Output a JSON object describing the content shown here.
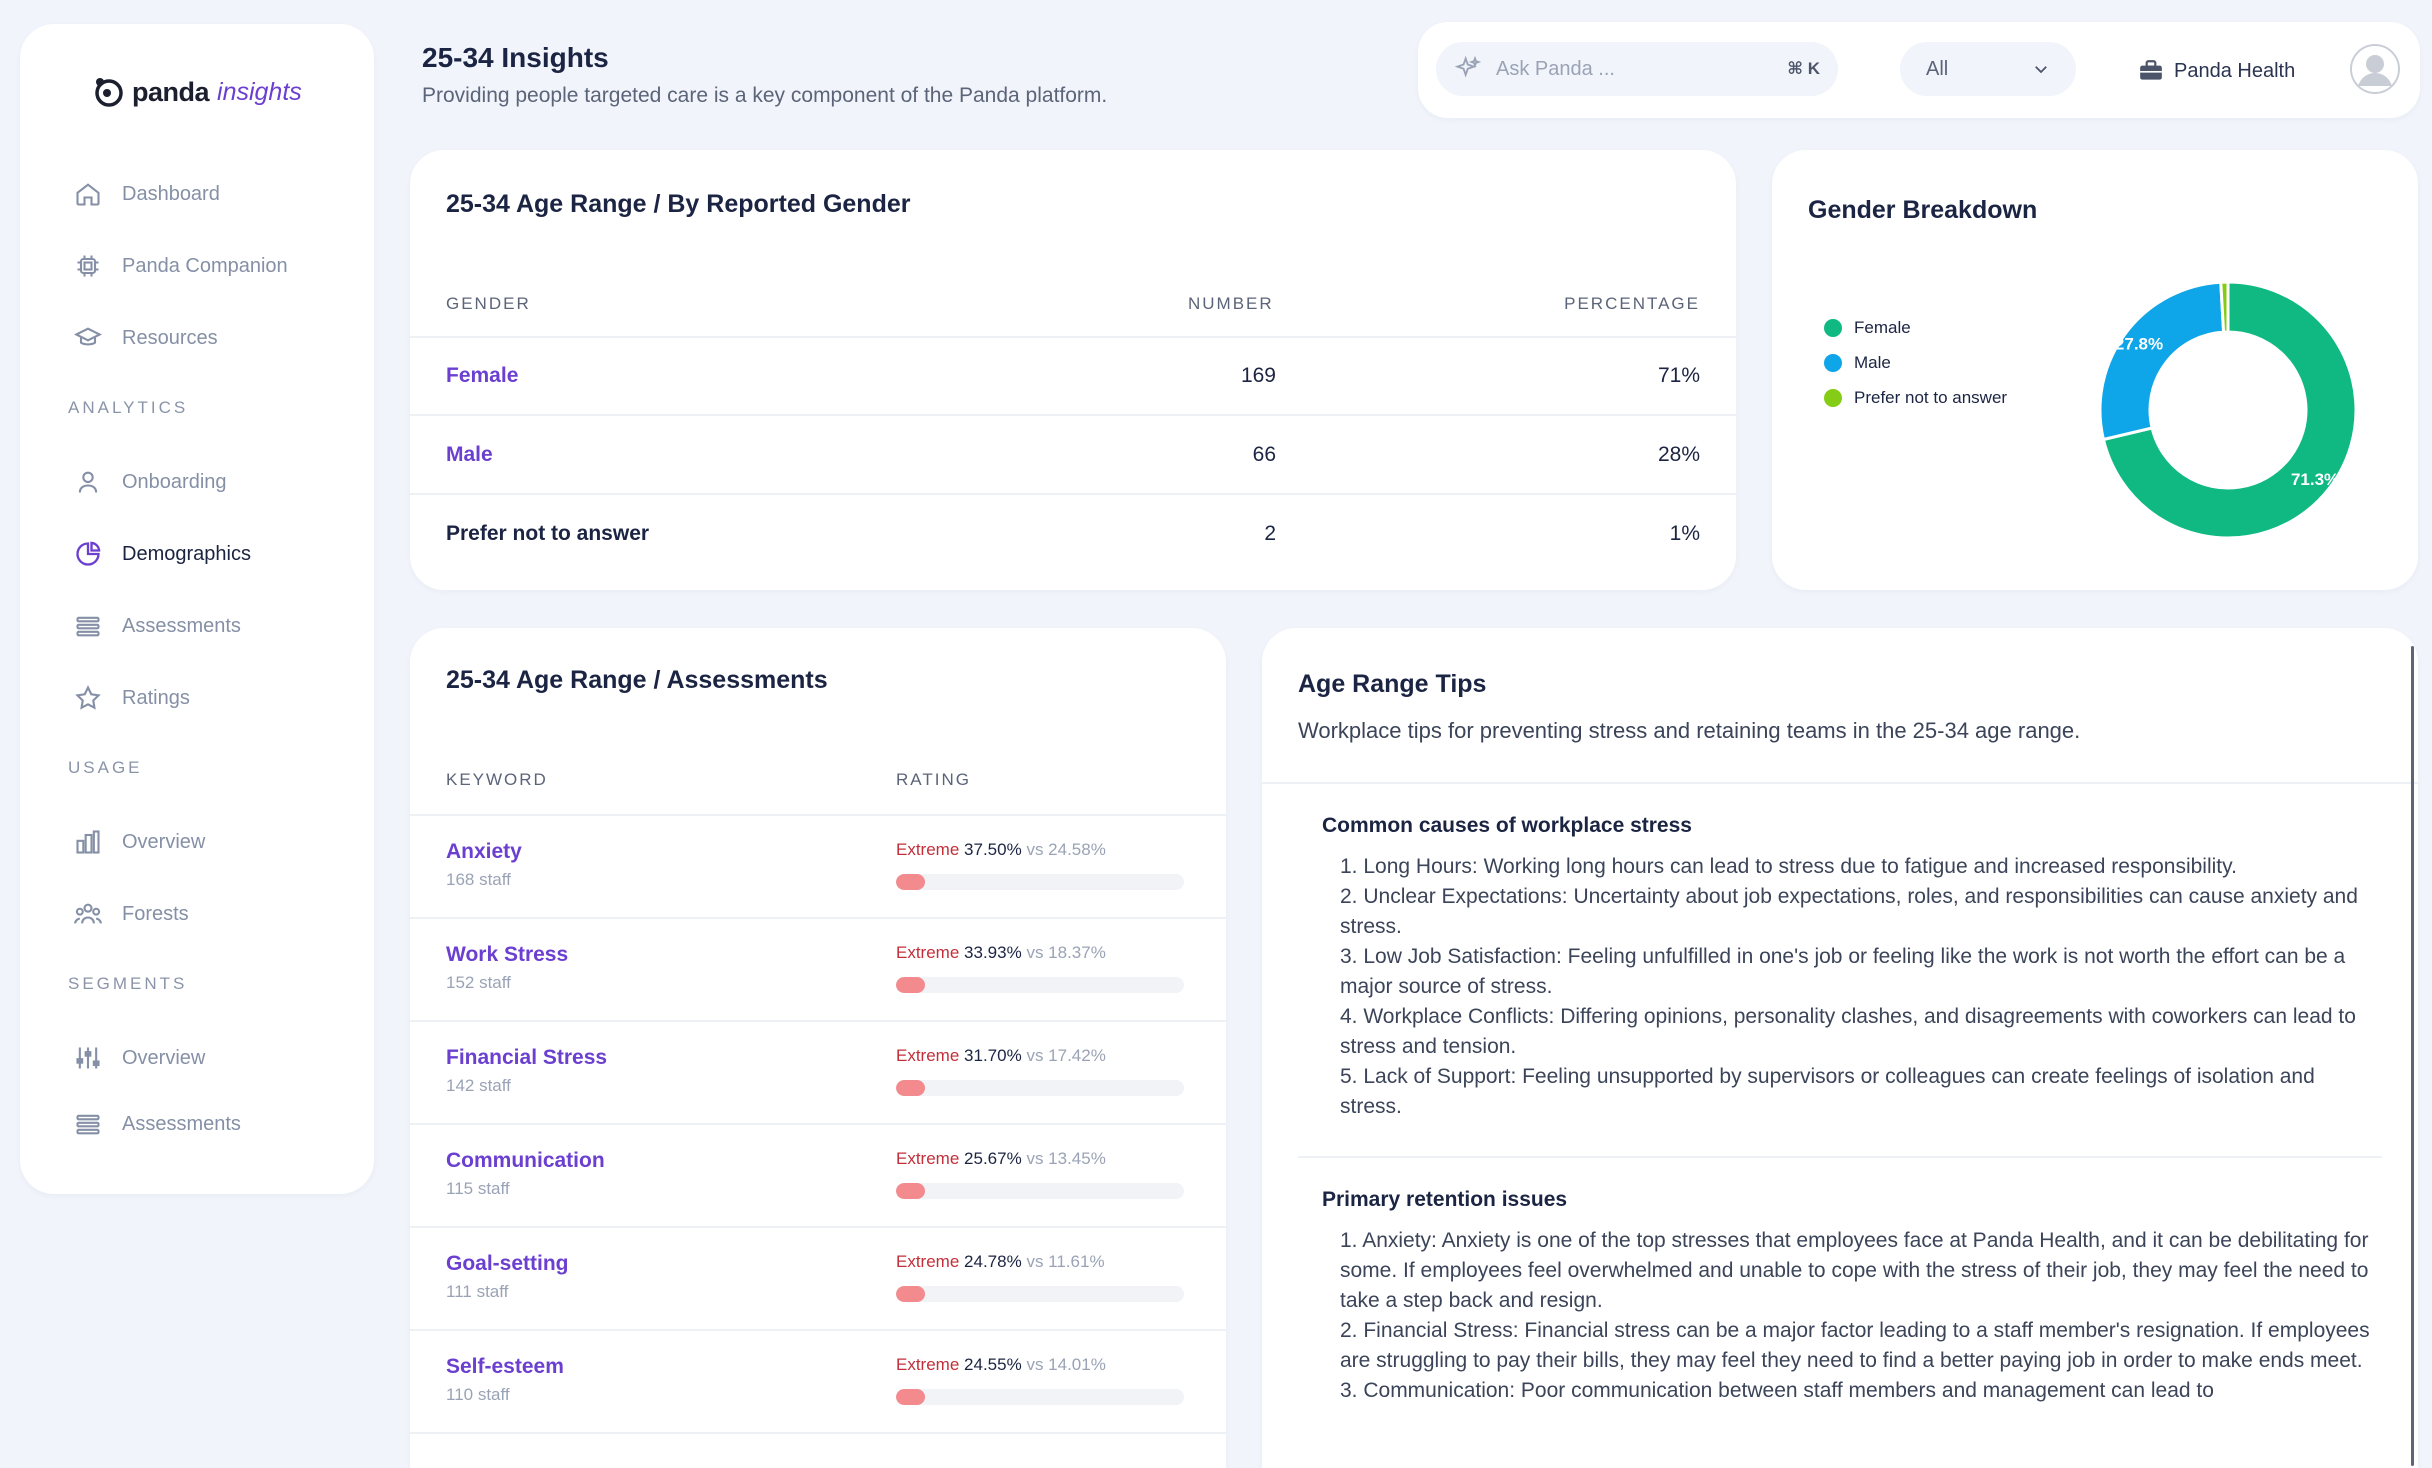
{
  "sidebar": {
    "logo": {
      "panda": "panda",
      "insights": "insights"
    },
    "nav": [
      {
        "label": "Dashboard",
        "icon": "home-icon"
      },
      {
        "label": "Panda Companion",
        "icon": "chip-icon"
      },
      {
        "label": "Resources",
        "icon": "graduation-cap-icon"
      }
    ],
    "analytics_title": "ANALYTICS",
    "analytics": [
      {
        "label": "Onboarding",
        "icon": "user-icon"
      },
      {
        "label": "Demographics",
        "icon": "pie-chart-icon",
        "active": true
      },
      {
        "label": "Assessments",
        "icon": "list-icon"
      },
      {
        "label": "Ratings",
        "icon": "star-icon"
      }
    ],
    "usage_title": "USAGE",
    "usage": [
      {
        "label": "Overview",
        "icon": "bar-chart-icon"
      },
      {
        "label": "Forests",
        "icon": "users-icon"
      }
    ],
    "segments_title": "SEGMENTS",
    "segments": [
      {
        "label": "Overview",
        "icon": "sliders-icon"
      },
      {
        "label": "Assessments",
        "icon": "list-icon"
      }
    ]
  },
  "header": {
    "title": "25-34 Insights",
    "subtitle": "Providing people targeted care is a key component of the Panda platform."
  },
  "topbar": {
    "search_placeholder": "Ask Panda ...",
    "search_shortcut": "⌘ K",
    "filter_value": "All",
    "org_name": "Panda Health"
  },
  "gender_table": {
    "title": "25-34 Age Range / By Reported Gender",
    "columns": [
      "GENDER",
      "NUMBER",
      "PERCENTAGE"
    ],
    "rows": [
      {
        "gender": "Female",
        "number": "169",
        "percentage": "71%"
      },
      {
        "gender": "Male",
        "number": "66",
        "percentage": "28%"
      },
      {
        "gender": "Prefer not to answer",
        "number": "2",
        "percentage": "1%"
      }
    ]
  },
  "chart_data": {
    "type": "pie",
    "title": "Gender Breakdown",
    "categories": [
      "Female",
      "Male",
      "Prefer not to answer"
    ],
    "values": [
      71.3,
      27.8,
      0.9
    ],
    "data_labels": [
      "71.3%",
      "27.8%",
      ""
    ],
    "colors": [
      "#10b981",
      "#0ea5e9",
      "#84cc16"
    ],
    "donut": true,
    "legend": "left"
  },
  "assessments": {
    "title": "25-34 Age Range / Assessments",
    "columns": [
      "KEYWORD",
      "RATING"
    ],
    "rows": [
      {
        "keyword": "Anxiety",
        "staff": "168 staff",
        "level": "Extreme",
        "value": "37.50%",
        "vs": "vs 24.58%",
        "fill": 0.1
      },
      {
        "keyword": "Work Stress",
        "staff": "152 staff",
        "level": "Extreme",
        "value": "33.93%",
        "vs": "vs 18.37%",
        "fill": 0.1
      },
      {
        "keyword": "Financial Stress",
        "staff": "142 staff",
        "level": "Extreme",
        "value": "31.70%",
        "vs": "vs 17.42%",
        "fill": 0.1
      },
      {
        "keyword": "Communication",
        "staff": "115 staff",
        "level": "Extreme",
        "value": "25.67%",
        "vs": "vs 13.45%",
        "fill": 0.1
      },
      {
        "keyword": "Goal-setting",
        "staff": "111 staff",
        "level": "Extreme",
        "value": "24.78%",
        "vs": "vs 11.61%",
        "fill": 0.1
      },
      {
        "keyword": "Self-esteem",
        "staff": "110 staff",
        "level": "Extreme",
        "value": "24.55%",
        "vs": "vs 14.01%",
        "fill": 0.1
      }
    ]
  },
  "tips": {
    "title": "Age Range Tips",
    "subtitle": "Workplace tips for preventing stress and retaining teams in the 25-34 age range.",
    "sections": [
      {
        "heading": "Common causes of workplace stress",
        "items": [
          "1. Long Hours: Working long hours can lead to stress due to fatigue and increased responsibility.",
          "2. Unclear Expectations: Uncertainty about job expectations, roles, and responsibilities can cause anxiety and stress.",
          "3. Low Job Satisfaction: Feeling unfulfilled in one's job or feeling like the work is not worth the effort can be a major source of stress.",
          "4. Workplace Conflicts: Differing opinions, personality clashes, and disagreements with coworkers can lead to stress and tension.",
          "5. Lack of Support: Feeling unsupported by supervisors or colleagues can create feelings of isolation and stress."
        ]
      },
      {
        "heading": "Primary retention issues",
        "items": [
          "1. Anxiety: Anxiety is one of the top stresses that employees face at Panda Health, and it can be debilitating for some. If employees feel overwhelmed and unable to cope with the stress of their job, they may feel the need to take a step back and resign.",
          "2. Financial Stress: Financial stress can be a major factor leading to a staff member's resignation. If employees are struggling to pay their bills, they may feel they need to find a better paying job in order to make ends meet.",
          "3. Communication: Poor communication between staff members and management can lead to"
        ]
      }
    ]
  }
}
